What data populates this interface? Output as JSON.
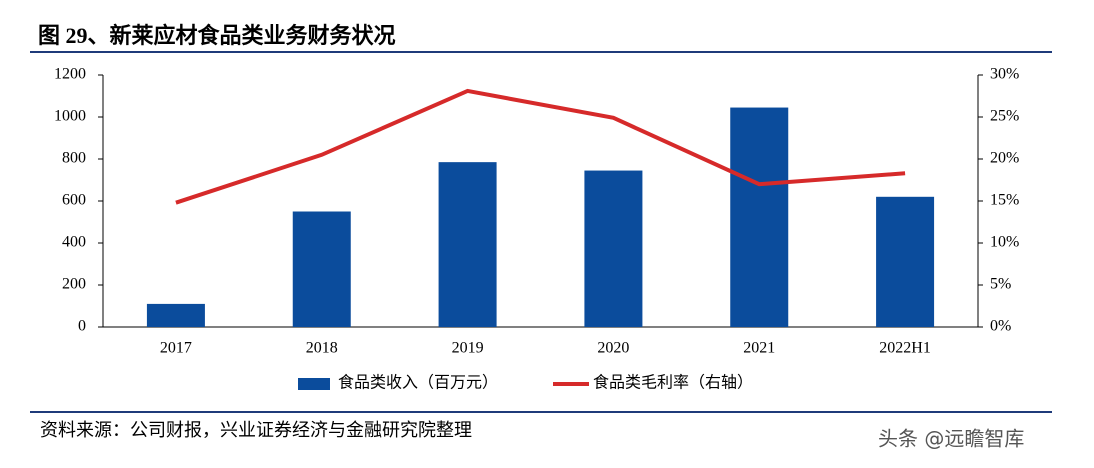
{
  "title": "图 29、新莱应材食品类业务财务状况",
  "source": "资料来源：公司财报，兴业证券经济与金融研究院整理",
  "watermark": "头条 @远瞻智库",
  "chart_data": {
    "type": "bar",
    "categories": [
      "2017",
      "2018",
      "2019",
      "2020",
      "2021",
      "2022H1"
    ],
    "series": [
      {
        "name": "食品类收入（百万元）",
        "type": "bar",
        "color": "#0b4c9c",
        "values": [
          110,
          550,
          785,
          745,
          1045,
          620
        ]
      },
      {
        "name": "食品类毛利率（右轴）",
        "type": "line",
        "axis": "y2",
        "color": "#d62a2a",
        "values": [
          14.8,
          20.5,
          28.1,
          24.9,
          17.0,
          18.3
        ]
      }
    ],
    "ylim": [
      0,
      1200
    ],
    "yticks": [
      0,
      200,
      400,
      600,
      800,
      1000,
      1200
    ],
    "y2lim": [
      0,
      30
    ],
    "y2ticks": [
      {
        "value": 0,
        "label": "0%"
      },
      {
        "value": 5,
        "label": "5%"
      },
      {
        "value": 10,
        "label": "10%"
      },
      {
        "value": 15,
        "label": "15%"
      },
      {
        "value": 20,
        "label": "20%"
      },
      {
        "value": 25,
        "label": "25%"
      },
      {
        "value": 30,
        "label": "30%"
      }
    ],
    "grid": false
  }
}
